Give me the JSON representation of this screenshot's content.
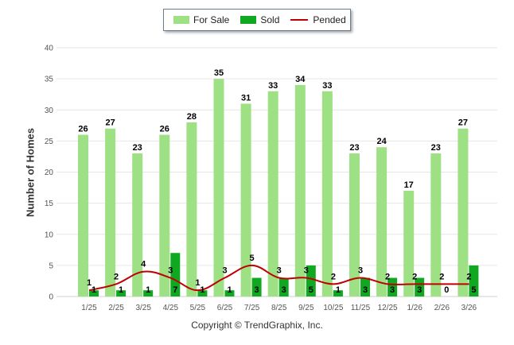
{
  "legend": {
    "for_sale_label": "For Sale",
    "sold_label": "Sold",
    "pended_label": "Pended"
  },
  "colors": {
    "for_sale": "#9ee084",
    "sold": "#10a821",
    "pended": "#c00000",
    "grid": "#e6e6e6",
    "axis_text": "#555555"
  },
  "copyright": "Copyright © TrendGraphix, Inc.",
  "chart_data": {
    "type": "bar",
    "ylabel": "Number of Homes",
    "xlabel": "",
    "ylim": [
      0,
      40
    ],
    "yticks": [
      0,
      5,
      10,
      15,
      20,
      25,
      30,
      35,
      40
    ],
    "grid": true,
    "legend_position": "top-center",
    "categories": [
      "1/25",
      "2/25",
      "3/25",
      "4/25",
      "5/25",
      "6/25",
      "7/25",
      "8/25",
      "9/25",
      "10/25",
      "11/25",
      "12/25",
      "1/26",
      "2/26",
      "3/26"
    ],
    "series": [
      {
        "name": "For Sale",
        "kind": "bar",
        "values": [
          26,
          27,
          23,
          26,
          28,
          35,
          31,
          33,
          34,
          33,
          23,
          24,
          17,
          23,
          27
        ]
      },
      {
        "name": "Sold",
        "kind": "bar",
        "values": [
          1,
          1,
          1,
          7,
          1,
          1,
          3,
          3,
          5,
          1,
          3,
          3,
          3,
          0,
          5
        ]
      },
      {
        "name": "Pended",
        "kind": "line",
        "values": [
          1,
          2,
          4,
          3,
          1,
          3,
          5,
          3,
          3,
          2,
          3,
          2,
          2,
          2,
          2
        ]
      }
    ]
  }
}
